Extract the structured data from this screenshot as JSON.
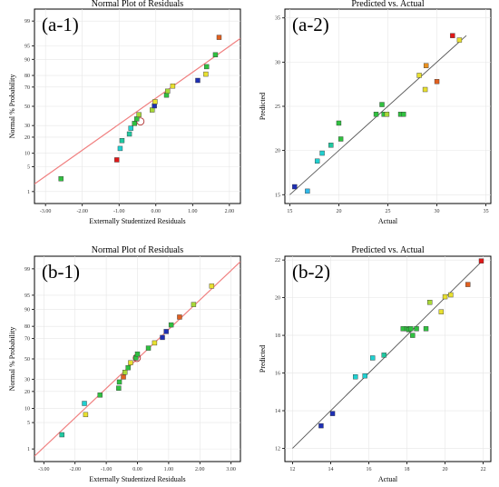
{
  "colors": {
    "blue": "#1e2fb4",
    "lightblue": "#2fb8e8",
    "cyan": "#20d0d0",
    "teal": "#20c8a0",
    "green": "#30c040",
    "yellowgreen": "#a8d838",
    "yellow": "#e8e030",
    "orange": "#e89020",
    "darkorange": "#e06020",
    "red": "#e01818",
    "darkgreen": "#207a20",
    "pink": "#e8a0a0"
  },
  "chart_data": [
    {
      "id": "a-1",
      "type": "scatter",
      "panel_label": "(a-1)",
      "title": "Normal Plot of Residuals",
      "xlabel": "Externally Studentized Residuals",
      "ylabel": "Normal % Probability",
      "xlim": [
        -3.3,
        2.3
      ],
      "x_ticks": [
        -3,
        -2,
        -1,
        0,
        1,
        2
      ],
      "x_tick_labels": [
        "-3.00",
        "-2.00",
        "-1.00",
        "0.00",
        "1.00",
        "2.00"
      ],
      "y_scale": "normal-probability",
      "ylim": [
        0.4,
        99.6
      ],
      "y_ticks": [
        1,
        5,
        10,
        20,
        30,
        50,
        70,
        80,
        90,
        95,
        99
      ],
      "y_tick_labels": [
        "1",
        "5",
        "10",
        "20",
        "30",
        "50",
        "70",
        "80",
        "90",
        "95",
        "99"
      ],
      "fit_line": {
        "x": [
          -3.3,
          2.3
        ],
        "y": [
          1.7,
          96.8
        ],
        "style": "red"
      },
      "highlight": {
        "x": -0.42,
        "y": 34
      },
      "points": [
        {
          "x": -2.58,
          "y": 2.4,
          "color": "green"
        },
        {
          "x": -1.06,
          "y": 7.2,
          "color": "red"
        },
        {
          "x": -0.97,
          "y": 12.5,
          "color": "cyan"
        },
        {
          "x": -0.92,
          "y": 17.5,
          "color": "teal"
        },
        {
          "x": -0.72,
          "y": 22.5,
          "color": "teal"
        },
        {
          "x": -0.68,
          "y": 27.5,
          "color": "cyan"
        },
        {
          "x": -0.58,
          "y": 32,
          "color": "green"
        },
        {
          "x": -0.52,
          "y": 36.5,
          "color": "green"
        },
        {
          "x": -0.46,
          "y": 41,
          "color": "yellowgreen"
        },
        {
          "x": -0.1,
          "y": 46,
          "color": "yellowgreen"
        },
        {
          "x": -0.04,
          "y": 50.5,
          "color": "blue"
        },
        {
          "x": -0.02,
          "y": 55,
          "color": "yellow"
        },
        {
          "x": 0.29,
          "y": 62,
          "color": "green"
        },
        {
          "x": 0.32,
          "y": 66,
          "color": "yellowgreen"
        },
        {
          "x": 0.46,
          "y": 71,
          "color": "yellow"
        },
        {
          "x": 1.14,
          "y": 76,
          "color": "blue"
        },
        {
          "x": 1.36,
          "y": 81,
          "color": "yellow"
        },
        {
          "x": 1.38,
          "y": 86,
          "color": "green"
        },
        {
          "x": 1.62,
          "y": 92,
          "color": "green"
        },
        {
          "x": 1.72,
          "y": 97,
          "color": "darkorange"
        }
      ]
    },
    {
      "id": "a-2",
      "type": "scatter",
      "panel_label": "(a-2)",
      "title": "Predicted vs. Actual",
      "xlabel": "Actual",
      "ylabel": "Predicted",
      "xlim": [
        14.5,
        35.5
      ],
      "ylim": [
        14.0,
        36.0
      ],
      "x_ticks": [
        15,
        20,
        25,
        30,
        35
      ],
      "y_ticks": [
        15,
        20,
        25,
        30,
        35
      ],
      "x_tick_labels": [
        "15",
        "20",
        "25",
        "30",
        "35"
      ],
      "y_tick_labels": [
        "15",
        "20",
        "25",
        "30",
        "35"
      ],
      "fit_line": {
        "x": [
          15,
          33
        ],
        "y": [
          15,
          33
        ],
        "style": "dark"
      },
      "points": [
        {
          "x": 15.5,
          "y": 15.9,
          "color": "blue"
        },
        {
          "x": 16.8,
          "y": 15.4,
          "color": "lightblue"
        },
        {
          "x": 17.8,
          "y": 18.8,
          "color": "cyan"
        },
        {
          "x": 18.3,
          "y": 19.7,
          "color": "cyan"
        },
        {
          "x": 19.2,
          "y": 20.6,
          "color": "teal"
        },
        {
          "x": 20.0,
          "y": 23.1,
          "color": "green"
        },
        {
          "x": 20.2,
          "y": 21.3,
          "color": "green"
        },
        {
          "x": 23.8,
          "y": 24.1,
          "color": "green"
        },
        {
          "x": 24.4,
          "y": 25.2,
          "color": "green"
        },
        {
          "x": 24.6,
          "y": 24.1,
          "color": "green"
        },
        {
          "x": 24.9,
          "y": 24.1,
          "color": "yellowgreen"
        },
        {
          "x": 26.3,
          "y": 24.1,
          "color": "green"
        },
        {
          "x": 26.6,
          "y": 24.1,
          "color": "green"
        },
        {
          "x": 28.2,
          "y": 28.5,
          "color": "yellow"
        },
        {
          "x": 28.8,
          "y": 26.9,
          "color": "yellow"
        },
        {
          "x": 28.9,
          "y": 29.6,
          "color": "orange"
        },
        {
          "x": 30.0,
          "y": 27.8,
          "color": "darkorange"
        },
        {
          "x": 31.6,
          "y": 33.0,
          "color": "red"
        },
        {
          "x": 32.3,
          "y": 32.5,
          "color": "yellow"
        }
      ]
    },
    {
      "id": "b-1",
      "type": "scatter",
      "panel_label": "(b-1)",
      "title": "Normal Plot of Residuals",
      "xlabel": "Externally Studentized Residuals",
      "ylabel": "Normal % Probability",
      "xlim": [
        -3.3,
        3.3
      ],
      "x_ticks": [
        -3,
        -2,
        -1,
        0,
        1,
        2,
        3
      ],
      "x_tick_labels": [
        "-3.00",
        "-2.00",
        "-1.00",
        "0.00",
        "1.00",
        "2.00",
        "3.00"
      ],
      "y_scale": "normal-probability",
      "ylim": [
        0.4,
        99.6
      ],
      "y_ticks": [
        1,
        5,
        10,
        20,
        30,
        50,
        70,
        80,
        90,
        95,
        99
      ],
      "y_tick_labels": [
        "1",
        "5",
        "10",
        "20",
        "30",
        "50",
        "70",
        "80",
        "90",
        "95",
        "99"
      ],
      "fit_line": {
        "x": [
          -3.3,
          3.3
        ],
        "y": [
          0.6,
          99.4
        ],
        "style": "red"
      },
      "highlight": {
        "x": -0.02,
        "y": 51
      },
      "points": [
        {
          "x": -2.42,
          "y": 2.5,
          "color": "teal"
        },
        {
          "x": -1.66,
          "y": 7.5,
          "color": "yellow"
        },
        {
          "x": -1.7,
          "y": 12.5,
          "color": "cyan"
        },
        {
          "x": -1.2,
          "y": 17.5,
          "color": "green"
        },
        {
          "x": -0.6,
          "y": 22.5,
          "color": "green"
        },
        {
          "x": -0.58,
          "y": 27.5,
          "color": "green"
        },
        {
          "x": -0.45,
          "y": 32,
          "color": "darkorange"
        },
        {
          "x": -0.4,
          "y": 36.5,
          "color": "yellowgreen"
        },
        {
          "x": -0.3,
          "y": 41,
          "color": "green"
        },
        {
          "x": -0.22,
          "y": 46,
          "color": "yellow"
        },
        {
          "x": -0.05,
          "y": 51,
          "color": "green"
        },
        {
          "x": 0.0,
          "y": 55,
          "color": "green"
        },
        {
          "x": 0.35,
          "y": 61,
          "color": "green"
        },
        {
          "x": 0.55,
          "y": 66,
          "color": "yellow"
        },
        {
          "x": 0.8,
          "y": 71,
          "color": "blue"
        },
        {
          "x": 0.92,
          "y": 76,
          "color": "blue"
        },
        {
          "x": 1.08,
          "y": 81,
          "color": "green"
        },
        {
          "x": 1.35,
          "y": 86,
          "color": "darkorange"
        },
        {
          "x": 1.8,
          "y": 92,
          "color": "yellowgreen"
        },
        {
          "x": 2.38,
          "y": 97,
          "color": "yellow"
        }
      ]
    },
    {
      "id": "b-2",
      "type": "scatter",
      "panel_label": "(b-2)",
      "title": "Predicted vs. Actual",
      "xlabel": "Actual",
      "ylabel": "Predicted",
      "xlim": [
        11.6,
        22.4
      ],
      "ylim": [
        11.3,
        22.2
      ],
      "x_ticks": [
        12,
        14,
        16,
        18,
        20,
        22
      ],
      "y_ticks": [
        12,
        14,
        16,
        18,
        20,
        22
      ],
      "x_tick_labels": [
        "12",
        "14",
        "16",
        "18",
        "20",
        "22"
      ],
      "y_tick_labels": [
        "12",
        "14",
        "16",
        "18",
        "20",
        "22"
      ],
      "fit_line": {
        "x": [
          12,
          22
        ],
        "y": [
          12,
          22
        ],
        "style": "dark"
      },
      "points": [
        {
          "x": 13.5,
          "y": 13.2,
          "color": "blue"
        },
        {
          "x": 14.1,
          "y": 13.85,
          "color": "blue"
        },
        {
          "x": 15.3,
          "y": 15.8,
          "color": "cyan"
        },
        {
          "x": 15.8,
          "y": 15.85,
          "color": "cyan"
        },
        {
          "x": 16.2,
          "y": 16.8,
          "color": "cyan"
        },
        {
          "x": 16.8,
          "y": 16.95,
          "color": "teal"
        },
        {
          "x": 17.8,
          "y": 18.35,
          "color": "green"
        },
        {
          "x": 18.0,
          "y": 18.35,
          "color": "green"
        },
        {
          "x": 18.1,
          "y": 18.3,
          "color": "green"
        },
        {
          "x": 18.2,
          "y": 18.35,
          "color": "green"
        },
        {
          "x": 18.3,
          "y": 18.0,
          "color": "green"
        },
        {
          "x": 18.5,
          "y": 18.35,
          "color": "green"
        },
        {
          "x": 19.0,
          "y": 18.35,
          "color": "green"
        },
        {
          "x": 19.2,
          "y": 19.75,
          "color": "yellowgreen"
        },
        {
          "x": 19.8,
          "y": 19.25,
          "color": "yellow"
        },
        {
          "x": 20.0,
          "y": 20.05,
          "color": "yellow"
        },
        {
          "x": 20.3,
          "y": 20.15,
          "color": "yellow"
        },
        {
          "x": 21.2,
          "y": 20.7,
          "color": "darkorange"
        },
        {
          "x": 21.9,
          "y": 21.95,
          "color": "red"
        }
      ]
    }
  ]
}
